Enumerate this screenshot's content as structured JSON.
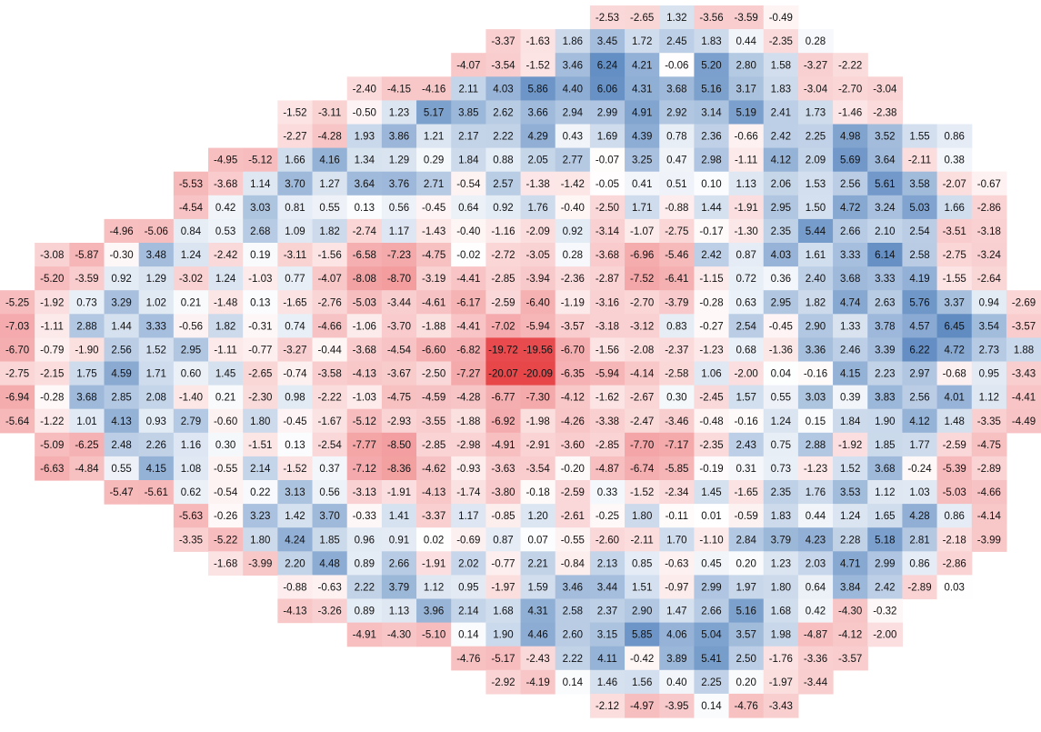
{
  "chart_data": {
    "type": "heatmap",
    "title": "",
    "xlabel": "",
    "ylabel": "",
    "color_scale": {
      "negative": "#e8474a",
      "zero": "#ffffff",
      "positive": "#3f74b6",
      "vmax_abs": 20.09
    },
    "rows": [
      {
        "start_col": 17,
        "values": [
          "-2.53",
          "-2.65",
          "1.32",
          "-3.56",
          "-3.59",
          "-0.49"
        ]
      },
      {
        "start_col": 14,
        "values": [
          "-3.37",
          "-1.63",
          "1.86",
          "3.45",
          "1.72",
          "2.45",
          "1.83",
          "0.44",
          "-2.35",
          "0.28"
        ]
      },
      {
        "start_col": 13,
        "values": [
          "-4.07",
          "-3.54",
          "-1.52",
          "3.46",
          "6.24",
          "4.21",
          "-0.06",
          "5.20",
          "2.80",
          "1.58",
          "-3.27",
          "-2.22"
        ]
      },
      {
        "start_col": 10,
        "values": [
          "-2.40",
          "-4.15",
          "-4.16",
          "2.11",
          "4.03",
          "5.86",
          "4.40",
          "6.06",
          "4.31",
          "3.68",
          "5.16",
          "3.17",
          "1.83",
          "-3.04",
          "-2.70",
          "-3.04"
        ]
      },
      {
        "start_col": 8,
        "values": [
          "-1.52",
          "-3.11",
          "-0.50",
          "1.23",
          "5.17",
          "3.85",
          "2.62",
          "3.66",
          "2.94",
          "2.99",
          "4.91",
          "2.92",
          "3.14",
          "5.19",
          "2.41",
          "1.73",
          "-1.46",
          "-2.38"
        ]
      },
      {
        "start_col": 8,
        "values": [
          "-2.27",
          "-4.28",
          "1.93",
          "3.86",
          "1.21",
          "2.17",
          "2.22",
          "4.29",
          "0.43",
          "1.69",
          "4.39",
          "0.78",
          "2.36",
          "-0.66",
          "2.42",
          "2.25",
          "4.98",
          "3.52",
          "1.55",
          "0.86"
        ]
      },
      {
        "start_col": 6,
        "values": [
          "-4.95",
          "-5.12",
          "1.66",
          "4.16",
          "1.34",
          "1.29",
          "0.29",
          "1.84",
          "0.88",
          "2.05",
          "2.77",
          "-0.07",
          "3.25",
          "0.47",
          "2.98",
          "-1.11",
          "4.12",
          "2.09",
          "5.69",
          "3.64",
          "-2.11",
          "0.38"
        ]
      },
      {
        "start_col": 5,
        "values": [
          "-5.53",
          "-3.68",
          "1.14",
          "3.70",
          "1.27",
          "3.64",
          "3.76",
          "2.71",
          "-0.54",
          "2.57",
          "-1.38",
          "-1.42",
          "-0.05",
          "0.41",
          "0.51",
          "0.10",
          "1.13",
          "2.06",
          "1.53",
          "2.56",
          "5.61",
          "3.58",
          "-2.07",
          "-0.67"
        ]
      },
      {
        "start_col": 5,
        "values": [
          "-4.54",
          "0.42",
          "3.03",
          "0.81",
          "0.55",
          "0.13",
          "0.56",
          "-0.45",
          "0.64",
          "0.92",
          "1.76",
          "-0.40",
          "-2.50",
          "1.71",
          "-0.88",
          "1.44",
          "-1.91",
          "2.95",
          "1.50",
          "4.72",
          "3.24",
          "5.03",
          "1.66",
          "-2.86"
        ]
      },
      {
        "start_col": 3,
        "values": [
          "-4.96",
          "-5.06",
          "0.84",
          "0.53",
          "2.68",
          "1.09",
          "1.82",
          "-2.74",
          "1.17",
          "-1.43",
          "-0.40",
          "-1.16",
          "-2.09",
          "0.92",
          "-3.14",
          "-1.07",
          "-2.75",
          "-0.17",
          "-1.30",
          "2.35",
          "5.44",
          "2.66",
          "2.10",
          "2.54",
          "-3.51",
          "-3.18"
        ]
      },
      {
        "start_col": 1,
        "values": [
          "-3.08",
          "-5.87",
          "-0.30",
          "3.48",
          "1.24",
          "-2.42",
          "0.19",
          "-3.11",
          "-1.56",
          "-6.58",
          "-7.23",
          "-4.75",
          "-0.02",
          "-2.72",
          "-3.05",
          "0.28",
          "-3.68",
          "-6.96",
          "-5.46",
          "2.42",
          "0.87",
          "4.03",
          "1.61",
          "3.33",
          "6.14",
          "2.58",
          "-2.75",
          "-3.24"
        ]
      },
      {
        "start_col": 1,
        "values": [
          "-5.20",
          "-3.59",
          "0.92",
          "1.29",
          "-3.02",
          "1.24",
          "-1.03",
          "0.77",
          "-4.07",
          "-8.08",
          "-8.70",
          "-3.19",
          "-4.41",
          "-2.85",
          "-3.94",
          "-2.36",
          "-2.87",
          "-7.52",
          "-6.41",
          "-1.15",
          "0.72",
          "0.36",
          "2.40",
          "3.68",
          "3.33",
          "4.19",
          "-1.55",
          "-2.64"
        ]
      },
      {
        "start_col": 0,
        "values": [
          "-5.25",
          "-1.92",
          "0.73",
          "3.29",
          "1.02",
          "0.21",
          "-1.48",
          "0.13",
          "-1.65",
          "-2.76",
          "-5.03",
          "-3.44",
          "-4.61",
          "-6.17",
          "-2.59",
          "-6.40",
          "-1.19",
          "-3.16",
          "-2.70",
          "-3.79",
          "-0.28",
          "0.63",
          "2.95",
          "1.82",
          "4.74",
          "2.63",
          "5.76",
          "3.37",
          "0.94",
          "-2.69"
        ]
      },
      {
        "start_col": 0,
        "values": [
          "-7.03",
          "-1.11",
          "2.88",
          "1.44",
          "3.33",
          "-0.56",
          "1.82",
          "-0.31",
          "0.74",
          "-4.66",
          "-1.06",
          "-3.70",
          "-1.88",
          "-4.41",
          "-7.02",
          "-5.94",
          "-3.57",
          "-3.18",
          "-3.12",
          "0.83",
          "-0.27",
          "2.54",
          "-0.45",
          "2.90",
          "1.33",
          "3.78",
          "4.57",
          "6.45",
          "3.54",
          "-3.57"
        ]
      },
      {
        "start_col": 0,
        "values": [
          "-6.70",
          "-0.79",
          "-1.90",
          "2.56",
          "1.52",
          "2.95",
          "-1.11",
          "-0.77",
          "-3.27",
          "-0.44",
          "-3.68",
          "-4.54",
          "-6.60",
          "-6.82",
          "-19.72",
          "-19.56",
          "-6.70",
          "-1.56",
          "-2.08",
          "-2.37",
          "-1.23",
          "0.68",
          "-1.36",
          "3.36",
          "2.46",
          "3.39",
          "6.22",
          "4.72",
          "2.73",
          "1.88"
        ]
      },
      {
        "start_col": 0,
        "values": [
          "-2.75",
          "-2.15",
          "1.75",
          "4.59",
          "1.71",
          "0.60",
          "1.45",
          "-2.65",
          "-0.74",
          "-3.58",
          "-4.13",
          "-3.67",
          "-2.50",
          "-7.27",
          "-20.07",
          "-20.09",
          "-6.35",
          "-5.94",
          "-4.14",
          "-2.58",
          "1.06",
          "-2.00",
          "0.04",
          "-0.16",
          "4.15",
          "2.23",
          "2.97",
          "-0.68",
          "0.95",
          "-3.43"
        ]
      },
      {
        "start_col": 0,
        "values": [
          "-6.94",
          "-0.28",
          "3.68",
          "2.85",
          "2.08",
          "-1.40",
          "0.21",
          "-2.30",
          "0.98",
          "-2.22",
          "-1.03",
          "-4.75",
          "-4.59",
          "-4.28",
          "-6.77",
          "-7.30",
          "-4.12",
          "-1.62",
          "-2.67",
          "0.30",
          "-2.45",
          "1.57",
          "0.55",
          "3.03",
          "0.39",
          "3.83",
          "2.56",
          "4.01",
          "1.12",
          "-4.41"
        ]
      },
      {
        "start_col": 0,
        "values": [
          "-5.64",
          "-1.22",
          "1.01",
          "4.13",
          "0.93",
          "2.79",
          "-0.60",
          "1.80",
          "-0.45",
          "-1.67",
          "-5.12",
          "-2.93",
          "-3.55",
          "-1.88",
          "-6.92",
          "-1.98",
          "-4.26",
          "-3.38",
          "-2.47",
          "-3.46",
          "-0.48",
          "-0.16",
          "1.24",
          "0.15",
          "1.84",
          "1.90",
          "4.12",
          "1.48",
          "-3.35",
          "-4.49"
        ]
      },
      {
        "start_col": 1,
        "values": [
          "-5.09",
          "-6.25",
          "2.48",
          "2.26",
          "1.16",
          "0.30",
          "-1.51",
          "0.13",
          "-2.54",
          "-7.77",
          "-8.50",
          "-2.85",
          "-2.98",
          "-4.91",
          "-2.91",
          "-3.60",
          "-2.85",
          "-7.70",
          "-7.17",
          "-2.35",
          "2.43",
          "0.75",
          "2.88",
          "-1.92",
          "1.85",
          "1.77",
          "-2.59",
          "-4.75"
        ]
      },
      {
        "start_col": 1,
        "values": [
          "-6.63",
          "-4.84",
          "0.55",
          "4.15",
          "1.08",
          "-0.55",
          "2.14",
          "-1.52",
          "0.37",
          "-7.12",
          "-8.36",
          "-4.62",
          "-0.93",
          "-3.63",
          "-3.54",
          "-0.20",
          "-4.87",
          "-6.74",
          "-5.85",
          "-0.19",
          "0.31",
          "0.73",
          "-1.23",
          "1.52",
          "3.68",
          "-0.24",
          "-5.39",
          "-2.89"
        ]
      },
      {
        "start_col": 3,
        "values": [
          "-5.47",
          "-5.61",
          "0.62",
          "-0.54",
          "0.22",
          "3.13",
          "0.56",
          "-3.13",
          "-1.91",
          "-4.13",
          "-1.74",
          "-3.80",
          "-0.18",
          "-2.59",
          "0.33",
          "-1.52",
          "-2.34",
          "1.45",
          "-1.65",
          "2.35",
          "1.76",
          "3.53",
          "1.12",
          "1.03",
          "-5.03",
          "-4.66"
        ]
      },
      {
        "start_col": 5,
        "values": [
          "-5.63",
          "-0.26",
          "3.23",
          "1.42",
          "3.70",
          "-0.33",
          "1.41",
          "-3.37",
          "1.17",
          "-0.85",
          "1.20",
          "-2.61",
          "-0.25",
          "1.80",
          "-0.11",
          "0.01",
          "-0.59",
          "1.83",
          "0.44",
          "1.24",
          "1.65",
          "4.28",
          "0.86",
          "-4.14"
        ]
      },
      {
        "start_col": 5,
        "values": [
          "-3.35",
          "-5.22",
          "1.80",
          "4.24",
          "1.85",
          "0.96",
          "0.91",
          "0.02",
          "-0.69",
          "0.87",
          "0.07",
          "-0.55",
          "-2.60",
          "-2.11",
          "1.70",
          "-1.10",
          "2.84",
          "3.79",
          "4.23",
          "2.28",
          "5.18",
          "2.81",
          "-2.18",
          "-3.99"
        ]
      },
      {
        "start_col": 6,
        "values": [
          "-1.68",
          "-3.99",
          "2.20",
          "4.48",
          "0.89",
          "2.66",
          "-1.91",
          "2.02",
          "-0.77",
          "2.21",
          "-0.84",
          "2.13",
          "0.85",
          "-0.63",
          "0.45",
          "0.20",
          "1.23",
          "2.03",
          "4.71",
          "2.99",
          "0.86",
          "-2.86"
        ]
      },
      {
        "start_col": 8,
        "values": [
          "-0.88",
          "-0.63",
          "2.22",
          "3.79",
          "1.12",
          "0.95",
          "-1.97",
          "1.59",
          "3.46",
          "3.44",
          "1.51",
          "-0.97",
          "2.99",
          "1.97",
          "1.80",
          "0.64",
          "3.84",
          "2.42",
          "-2.89",
          "0.03"
        ]
      },
      {
        "start_col": 8,
        "values": [
          "-4.13",
          "-3.26",
          "0.89",
          "1.13",
          "3.96",
          "2.14",
          "1.68",
          "4.31",
          "2.58",
          "2.37",
          "2.90",
          "1.47",
          "2.66",
          "5.16",
          "1.68",
          "0.42",
          "-4.30",
          "-0.32"
        ]
      },
      {
        "start_col": 10,
        "values": [
          "-4.91",
          "-4.30",
          "-5.10",
          "0.14",
          "1.90",
          "4.46",
          "2.60",
          "3.15",
          "5.85",
          "4.06",
          "5.04",
          "3.57",
          "1.98",
          "-4.87",
          "-4.12",
          "-2.00"
        ]
      },
      {
        "start_col": 13,
        "values": [
          "-4.76",
          "-5.17",
          "-2.43",
          "2.22",
          "4.11",
          "-0.42",
          "3.89",
          "5.41",
          "2.50",
          "-1.76",
          "-3.36",
          "-3.57"
        ]
      },
      {
        "start_col": 14,
        "values": [
          "-2.92",
          "-4.19",
          "0.14",
          "1.46",
          "1.56",
          "0.40",
          "2.25",
          "0.20",
          "-1.97",
          "-3.44"
        ]
      },
      {
        "start_col": 17,
        "values": [
          "-2.12",
          "-4.97",
          "-3.95",
          "0.14",
          "-4.76",
          "-3.43"
        ]
      }
    ]
  }
}
